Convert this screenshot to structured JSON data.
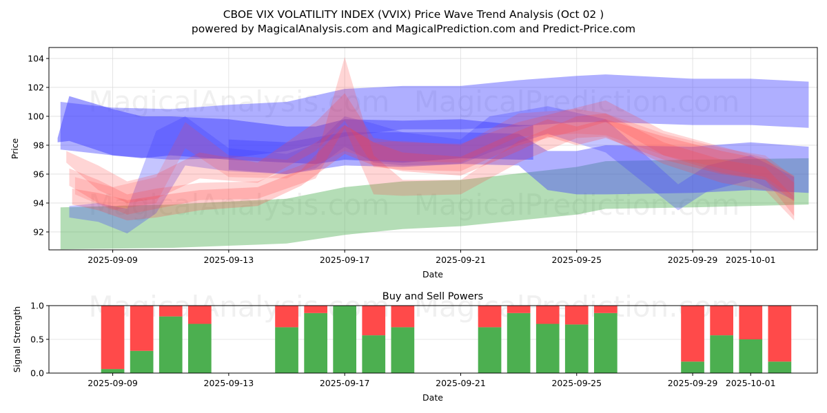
{
  "title_line1": "CBOE VIX VOLATILITY INDEX (VVIX) Price Wave Trend Analysis (Oct 02 )",
  "title_line2": "powered by MagicalAnalysis.com and MagicalPrediction.com and Predict-Price.com",
  "watermarks": [
    "MagicalAnalysis.com",
    "MagicalPrediction.com"
  ],
  "colors": {
    "blue_band": "#4040ff",
    "red_band": "#ff4040",
    "green_band": "#4caf50",
    "buy": "#4caf50",
    "sell": "#ff4a4a",
    "grid": "#dddddd"
  },
  "chart_data": [
    {
      "type": "area",
      "title": "",
      "xlabel": "Date",
      "ylabel": "Price",
      "xlim": [
        "2025-09-06.8",
        "2025-10-03.3"
      ],
      "x_range_days": [
        -2.2,
        24.3
      ],
      "x_origin": "2025-09-09",
      "ylim": [
        90.76,
        104.76
      ],
      "yticks": [
        92,
        94,
        96,
        98,
        100,
        102,
        104
      ],
      "xticks": [
        {
          "day": 0,
          "label": "2025-09-09"
        },
        {
          "day": 4,
          "label": "2025-09-13"
        },
        {
          "day": 8,
          "label": "2025-09-17"
        },
        {
          "day": 12,
          "label": "2025-09-21"
        },
        {
          "day": 16,
          "label": "2025-09-25"
        },
        {
          "day": 20,
          "label": "2025-09-29"
        },
        {
          "day": 22,
          "label": "2025-10-01"
        }
      ],
      "grid": true,
      "bands": [
        {
          "name": "green-band",
          "color": "green",
          "opacity": 0.42,
          "x": [
            -1.8,
            2,
            6,
            8,
            10,
            12,
            16,
            17,
            20,
            24
          ],
          "upper": [
            93.7,
            93.9,
            94.3,
            95.1,
            95.5,
            95.6,
            96.5,
            96.9,
            97.0,
            97.1
          ],
          "lower": [
            90.8,
            90.9,
            91.2,
            91.8,
            92.2,
            92.4,
            93.2,
            93.6,
            93.7,
            93.9
          ]
        },
        {
          "name": "blue-band-upper",
          "color": "blue",
          "opacity": 0.42,
          "x": [
            -1.8,
            0,
            2,
            4,
            6,
            8,
            10,
            12,
            14,
            16,
            17,
            20,
            22,
            24
          ],
          "upper": [
            101.0,
            100.6,
            100.5,
            100.8,
            101.0,
            101.9,
            102.1,
            102.1,
            102.5,
            102.8,
            102.9,
            102.6,
            102.6,
            102.4
          ],
          "lower": [
            97.7,
            97.3,
            97.0,
            97.1,
            97.6,
            98.6,
            99.1,
            99.1,
            99.3,
            99.6,
            99.6,
            99.4,
            99.4,
            99.2
          ]
        },
        {
          "name": "blue-band-lower",
          "color": "blue",
          "opacity": 0.42,
          "x": [
            4,
            6,
            8,
            10,
            12,
            14,
            15,
            16,
            17,
            20,
            22,
            24
          ],
          "upper": [
            98.4,
            98.2,
            98.9,
            98.9,
            98.9,
            98.8,
            97.6,
            97.6,
            98.0,
            97.9,
            98.2,
            97.9
          ],
          "lower": [
            96.3,
            96.0,
            96.6,
            96.5,
            96.7,
            96.6,
            94.9,
            94.6,
            94.6,
            94.7,
            94.9,
            94.7
          ]
        },
        {
          "name": "blue-band-main",
          "color": "blue",
          "opacity": 0.5,
          "x": [
            -1.9,
            -1.5,
            0,
            1,
            2,
            4,
            6,
            7,
            8,
            10,
            12,
            14,
            14.5
          ],
          "upper": [
            98.5,
            101.4,
            100.5,
            100.0,
            100.0,
            99.8,
            99.3,
            99.3,
            99.8,
            99.7,
            99.8,
            99.4,
            99.4
          ],
          "lower": [
            98.2,
            98.3,
            97.3,
            97.1,
            97.3,
            97.0,
            96.8,
            96.7,
            97.0,
            96.8,
            97.1,
            97.0,
            97.0
          ]
        },
        {
          "name": "blue-wave",
          "color": "blue",
          "opacity": 0.3,
          "x": [
            -1.5,
            -0.5,
            0.5,
            1.5,
            2.5,
            4,
            6,
            7,
            8,
            9,
            10,
            12,
            13,
            15,
            17,
            19.5,
            20.5,
            22,
            23.5
          ],
          "upper": [
            93.8,
            94.0,
            93.6,
            99.0,
            100.0,
            97.8,
            97.4,
            98.1,
            100.0,
            99.5,
            98.9,
            98.4,
            100.0,
            100.7,
            99.8,
            95.3,
            96.6,
            97.3,
            95.8
          ],
          "lower": [
            93.0,
            92.7,
            91.9,
            93.3,
            96.6,
            96.2,
            96.0,
            96.4,
            97.9,
            96.8,
            96.6,
            96.7,
            97.5,
            98.8,
            97.5,
            93.5,
            94.8,
            95.6,
            94.2
          ]
        },
        {
          "name": "red-wave-1",
          "color": "red",
          "opacity": 0.22,
          "x": [
            -1.6,
            -0.5,
            0.5,
            1.5,
            3,
            5,
            7,
            8,
            9,
            10,
            12,
            14,
            16,
            17,
            19,
            21,
            22.5,
            23.5
          ],
          "upper": [
            97.6,
            96.6,
            95.5,
            96.0,
            97.5,
            96.8,
            99.6,
            101.6,
            98.5,
            98.2,
            98.1,
            99.6,
            100.6,
            101.1,
            99.0,
            97.9,
            97.1,
            95.4
          ],
          "lower": [
            96.8,
            94.9,
            94.0,
            94.3,
            95.7,
            95.4,
            97.6,
            99.7,
            96.5,
            96.3,
            96.2,
            98.0,
            99.0,
            99.6,
            97.3,
            96.1,
            95.6,
            93.1
          ]
        },
        {
          "name": "red-wave-2",
          "color": "red",
          "opacity": 0.22,
          "x": [
            -1.5,
            -0.5,
            0.5,
            1.5,
            3,
            5,
            7,
            8,
            9,
            10,
            12,
            14,
            16,
            17,
            19,
            21,
            22.5,
            23.5
          ],
          "upper": [
            96.4,
            95.6,
            94.6,
            95.0,
            95.4,
            95.5,
            97.0,
            104.1,
            97.3,
            95.6,
            95.6,
            98.3,
            100.0,
            100.2,
            98.2,
            97.0,
            96.5,
            94.4
          ],
          "lower": [
            95.2,
            94.0,
            93.2,
            93.6,
            94.2,
            94.3,
            95.7,
            99.2,
            94.6,
            94.5,
            94.6,
            96.8,
            98.5,
            98.6,
            96.7,
            95.4,
            94.9,
            92.8
          ]
        },
        {
          "name": "red-wave-3",
          "color": "red",
          "opacity": 0.25,
          "x": [
            -1.4,
            -0.5,
            0.5,
            1.5,
            3,
            5,
            6.5,
            8,
            9,
            10,
            12,
            14,
            15,
            16,
            17,
            19,
            21,
            22.5,
            23.5
          ],
          "upper": [
            95.0,
            94.7,
            94.2,
            94.5,
            94.9,
            95.1,
            96.3,
            99.4,
            98.2,
            97.5,
            97.2,
            99.0,
            99.8,
            99.3,
            99.8,
            98.6,
            97.6,
            97.0,
            95.9
          ],
          "lower": [
            93.9,
            93.5,
            92.8,
            93.0,
            93.5,
            93.8,
            95.2,
            97.4,
            96.6,
            96.2,
            95.9,
            97.6,
            98.6,
            98.0,
            98.5,
            97.0,
            96.0,
            95.6,
            94.1
          ]
        },
        {
          "name": "purple-wave",
          "color": "red",
          "opacity": 0.18,
          "x": [
            -1.3,
            0,
            1.5,
            2.5,
            4,
            6,
            8,
            9,
            10,
            12,
            14,
            16,
            17,
            19,
            21,
            22.5,
            23.5
          ],
          "upper": [
            95.8,
            95.1,
            95.8,
            99.6,
            97.3,
            97.0,
            99.4,
            98.2,
            98.3,
            98.0,
            100.2,
            100.5,
            100.2,
            98.8,
            97.8,
            97.3,
            95.8
          ],
          "lower": [
            94.6,
            93.5,
            94.0,
            97.8,
            95.8,
            95.7,
            97.6,
            97.0,
            96.9,
            96.8,
            98.6,
            98.8,
            98.7,
            97.3,
            96.4,
            95.8,
            94.4
          ]
        }
      ]
    },
    {
      "type": "bar",
      "title": "Buy and Sell Powers",
      "xlabel": "Date",
      "ylabel": "Signal Strength",
      "ylim": [
        0,
        1.0
      ],
      "yticks": [
        0.0,
        0.5,
        1.0
      ],
      "grid": true,
      "categories": [
        "2025-09-09",
        "2025-09-10",
        "2025-09-11",
        "2025-09-12",
        "2025-09-15",
        "2025-09-16",
        "2025-09-17",
        "2025-09-18",
        "2025-09-19",
        "2025-09-22",
        "2025-09-23",
        "2025-09-24",
        "2025-09-25",
        "2025-09-26",
        "2025-09-29",
        "2025-09-30",
        "2025-10-01",
        "2025-10-02"
      ],
      "days": [
        0,
        1,
        2,
        3,
        6,
        7,
        8,
        9,
        10,
        13,
        14,
        15,
        16,
        17,
        20,
        21,
        22,
        23
      ],
      "series": [
        {
          "name": "Buy",
          "color": "green",
          "values": [
            0.06,
            0.33,
            0.84,
            0.73,
            0.68,
            0.89,
            1.0,
            0.56,
            0.68,
            0.68,
            0.89,
            0.73,
            0.72,
            0.89,
            0.17,
            0.56,
            0.5,
            0.17
          ]
        },
        {
          "name": "Sell",
          "color": "red",
          "values": [
            0.94,
            0.67,
            0.16,
            0.27,
            0.32,
            0.11,
            0.0,
            0.44,
            0.32,
            0.32,
            0.11,
            0.27,
            0.28,
            0.11,
            0.83,
            0.44,
            0.5,
            0.83
          ]
        }
      ]
    }
  ]
}
